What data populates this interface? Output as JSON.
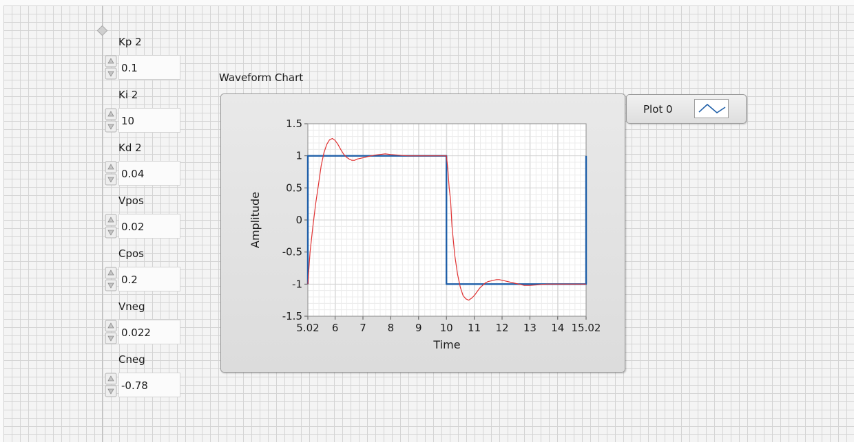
{
  "controls": [
    {
      "label": "Kp 2",
      "value": "0.1"
    },
    {
      "label": "Ki 2",
      "value": "10"
    },
    {
      "label": "Kd 2",
      "value": "0.04"
    },
    {
      "label": "Vpos",
      "value": "0.02"
    },
    {
      "label": "Cpos",
      "value": "0.2"
    },
    {
      "label": "Vneg",
      "value": "0.022"
    },
    {
      "label": "Cneg",
      "value": "-0.78"
    }
  ],
  "chart": {
    "label": "Waveform Chart",
    "legend": {
      "plot_name": "Plot 0"
    }
  },
  "chart_data": {
    "type": "line",
    "title": "Waveform Chart",
    "xlabel": "Time",
    "ylabel": "Amplitude",
    "xlim": [
      5.02,
      15.02
    ],
    "ylim": [
      -1.5,
      1.5
    ],
    "xticks": [
      5.02,
      6,
      7,
      8,
      9,
      10,
      11,
      12,
      13,
      14,
      15.02
    ],
    "xtick_labels": [
      "5.02",
      "6",
      "7",
      "8",
      "9",
      "10",
      "11",
      "12",
      "13",
      "14",
      "15.02"
    ],
    "yticks": [
      1.5,
      1,
      0.5,
      0,
      -0.5,
      -1,
      -1.5
    ],
    "ytick_labels": [
      "1.5",
      "1",
      "0.5",
      "0",
      "-0.5",
      "-1",
      "-1.5"
    ],
    "grid": true,
    "legend": "Plot 0",
    "series": [
      {
        "name": "Plot 0",
        "color": "#1f5fa8",
        "x": [
          5.02,
          5.02,
          10.0,
          10.0,
          15.02,
          15.02
        ],
        "y": [
          -1,
          1,
          1,
          -1,
          -1,
          1
        ]
      },
      {
        "color": "#e03131",
        "x": [
          5.02,
          5.1,
          5.2,
          5.3,
          5.4,
          5.5,
          5.6,
          5.7,
          5.8,
          5.9,
          6.0,
          6.1,
          6.2,
          6.3,
          6.4,
          6.5,
          6.6,
          6.7,
          6.8,
          6.9,
          7.0,
          7.2,
          7.4,
          7.6,
          7.8,
          8.0,
          8.3,
          8.6,
          9.0,
          9.4,
          9.8,
          10.0,
          10.05,
          10.1,
          10.15,
          10.2,
          10.3,
          10.4,
          10.5,
          10.6,
          10.7,
          10.8,
          10.9,
          11.0,
          11.1,
          11.2,
          11.3,
          11.4,
          11.5,
          11.6,
          11.7,
          11.8,
          11.9,
          12.0,
          12.2,
          12.4,
          12.6,
          12.8,
          13.0,
          13.3,
          13.6,
          14.0,
          14.5,
          15.02
        ],
        "y": [
          -1.0,
          -0.5,
          -0.1,
          0.25,
          0.55,
          0.85,
          1.05,
          1.18,
          1.25,
          1.27,
          1.24,
          1.18,
          1.1,
          1.03,
          0.98,
          0.95,
          0.93,
          0.93,
          0.95,
          0.96,
          0.97,
          0.99,
          1.01,
          1.02,
          1.03,
          1.02,
          1.01,
          1.0,
          1.0,
          1.0,
          1.0,
          1.0,
          0.8,
          0.5,
          0.3,
          -0.1,
          -0.55,
          -0.85,
          -1.05,
          -1.18,
          -1.23,
          -1.25,
          -1.22,
          -1.18,
          -1.12,
          -1.06,
          -1.02,
          -0.98,
          -0.96,
          -0.95,
          -0.94,
          -0.93,
          -0.93,
          -0.94,
          -0.96,
          -0.98,
          -1.0,
          -1.02,
          -1.02,
          -1.01,
          -1.0,
          -1.0,
          -1.0,
          -1.0
        ]
      }
    ]
  }
}
